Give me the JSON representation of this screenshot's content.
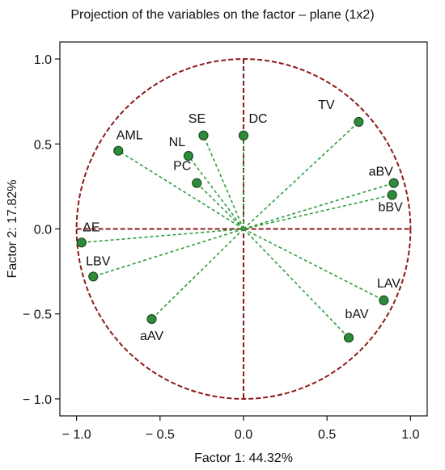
{
  "chart_data": {
    "type": "scatter",
    "title": "Projection of the variables on the factor – plane (1x2)",
    "xlabel": "Factor 1: 44.32%",
    "ylabel": "Factor 2: 17.82%",
    "xlim": [
      -1.1,
      1.1
    ],
    "ylim": [
      -1.1,
      1.1
    ],
    "xticks": [
      -1.0,
      -0.5,
      0.0,
      0.5,
      1.0
    ],
    "yticks": [
      -1.0,
      -0.5,
      0.0,
      0.5,
      1.0
    ],
    "xtick_labels": [
      "− 1.0",
      "− 0.5",
      "0.0",
      "0.5",
      "1.0"
    ],
    "ytick_labels": [
      "− 1.0",
      "− 0.5",
      "0.0",
      "0.5",
      "1.0"
    ],
    "unit_circle": true,
    "points": [
      {
        "label": "SE",
        "x": -0.24,
        "y": 0.55
      },
      {
        "label": "DC",
        "x": 0.0,
        "y": 0.55
      },
      {
        "label": "TV",
        "x": 0.69,
        "y": 0.63
      },
      {
        "label": "AML",
        "x": -0.75,
        "y": 0.46
      },
      {
        "label": "NL",
        "x": -0.33,
        "y": 0.43
      },
      {
        "label": "PC",
        "x": -0.28,
        "y": 0.27
      },
      {
        "label": "aBV",
        "x": 0.9,
        "y": 0.27
      },
      {
        "label": "bBV",
        "x": 0.89,
        "y": 0.2
      },
      {
        "label": "ΔE",
        "x": -0.97,
        "y": -0.08
      },
      {
        "label": "LBV",
        "x": -0.9,
        "y": -0.28
      },
      {
        "label": "LAV",
        "x": 0.84,
        "y": -0.42
      },
      {
        "label": "bAV",
        "x": 0.63,
        "y": -0.64
      },
      {
        "label": "aAV",
        "x": -0.55,
        "y": -0.53
      }
    ],
    "colors": {
      "circle": "#8b1a1a",
      "axes_lines": "#8b1a1a",
      "vectors": "#2e9e3e",
      "point_fill": "#2e8b3a",
      "point_stroke": "#1d4d22"
    }
  }
}
